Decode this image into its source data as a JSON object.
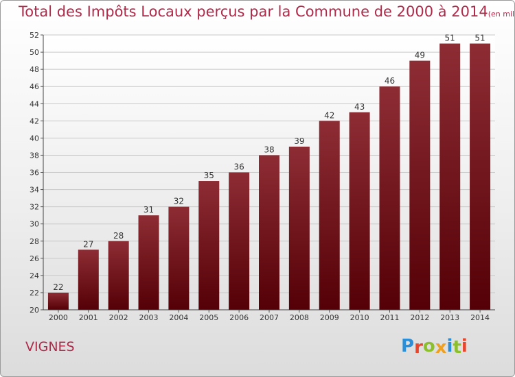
{
  "chart_data": {
    "type": "bar",
    "title": "Total des Impôts Locaux perçus par la Commune de 2000 à 2014",
    "unit_label": "(en milliers d'€)",
    "categories": [
      "2000",
      "2001",
      "2002",
      "2003",
      "2004",
      "2005",
      "2006",
      "2007",
      "2008",
      "2009",
      "2010",
      "2011",
      "2012",
      "2013",
      "2014"
    ],
    "values": [
      22,
      27,
      28,
      31,
      32,
      35,
      36,
      38,
      39,
      42,
      43,
      46,
      49,
      51,
      51
    ],
    "ylim": [
      20,
      52
    ],
    "yticks": [
      20,
      22,
      24,
      26,
      28,
      30,
      32,
      34,
      36,
      38,
      40,
      42,
      44,
      46,
      48,
      50,
      52
    ],
    "grid": true,
    "bar_color": "#7a1a1f",
    "data_labels": true
  },
  "commune_name": "VIGNES",
  "brand": {
    "name": "Proxiti",
    "letter_colors": [
      "#2a8fd8",
      "#e8452c",
      "#8bbf2b",
      "#f0a020",
      "#2a8fd8",
      "#8bbf2b",
      "#e8452c"
    ]
  }
}
